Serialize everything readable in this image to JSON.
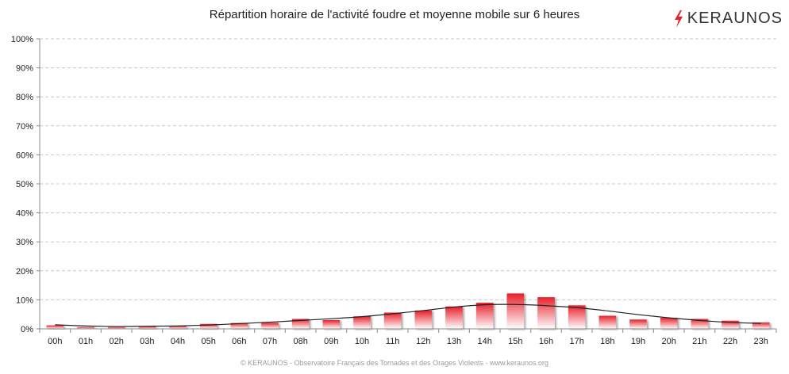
{
  "header": {
    "title": "Répartition horaire de l'activité foudre et moyenne mobile sur 6 heures",
    "logo_text": "KERAUNOS"
  },
  "footer": {
    "credit": "© KERAUNOS - Observatoire Français des Tornades et des Orages Violents - www.keraunos.org"
  },
  "colors": {
    "bar_top": "#e8202a",
    "bar_bottom": "#ffffff",
    "line": "#222222",
    "grid": "#c8c8c8",
    "logo_bolt": "#e8202a"
  },
  "chart_data": {
    "type": "bar",
    "categories": [
      "00h",
      "01h",
      "02h",
      "03h",
      "04h",
      "05h",
      "06h",
      "07h",
      "08h",
      "09h",
      "10h",
      "11h",
      "12h",
      "13h",
      "14h",
      "15h",
      "16h",
      "17h",
      "18h",
      "19h",
      "20h",
      "21h",
      "22h",
      "23h"
    ],
    "y_tick_labels": [
      "0%",
      "10%",
      "20%",
      "30%",
      "40%",
      "50%",
      "60%",
      "70%",
      "80%",
      "90%",
      "100%"
    ],
    "ylim": [
      0,
      100
    ],
    "grid": true,
    "series": [
      {
        "type": "bar",
        "values": [
          1.2,
          0.6,
          0.6,
          0.8,
          1.0,
          1.7,
          2.0,
          2.1,
          3.4,
          3.0,
          4.3,
          5.6,
          6.3,
          7.7,
          9.0,
          12.2,
          10.9,
          8.1,
          4.5,
          3.2,
          3.8,
          3.4,
          2.8,
          2.2
        ]
      },
      {
        "type": "line",
        "values": [
          1.4,
          1.0,
          0.8,
          0.9,
          1.0,
          1.3,
          1.8,
          2.3,
          2.9,
          3.5,
          4.2,
          5.2,
          6.3,
          7.5,
          8.3,
          8.4,
          8.0,
          7.3,
          6.2,
          4.9,
          3.8,
          2.9,
          2.2,
          1.9
        ]
      }
    ]
  }
}
